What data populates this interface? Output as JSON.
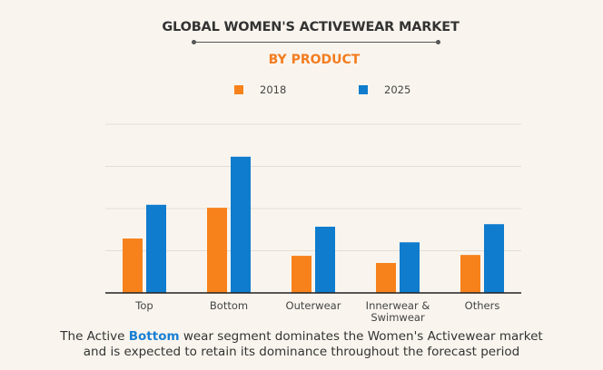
{
  "chart_data": {
    "type": "bar",
    "title": "GLOBAL WOMEN'S ACTIVEWEAR MARKET",
    "subtitle": "BY PRODUCT",
    "categories": [
      "Top",
      "Bottom",
      "Outerwear",
      "Innerwear & Swimwear",
      "Others"
    ],
    "category_lines": [
      [
        "Top"
      ],
      [
        "Bottom"
      ],
      [
        "Outerwear"
      ],
      [
        "Innerwear &",
        "Swimwear"
      ],
      [
        "Others"
      ]
    ],
    "series": [
      {
        "name": "2018",
        "color": "#f7821b",
        "values": [
          1.29,
          2.02,
          0.88,
          0.71,
          0.9
        ]
      },
      {
        "name": "2025",
        "color": "#0f7ccd",
        "values": [
          2.09,
          3.23,
          1.57,
          1.2,
          1.63
        ]
      }
    ],
    "xlabel": "",
    "ylabel": "",
    "ylim": [
      0,
      4
    ],
    "y_tick_labels_shown": false,
    "grid": true,
    "legend_placement": "top-center"
  },
  "caption": {
    "before": "The Active ",
    "highlight": "Bottom",
    "after": " wear segment dominates the Women's Activewear market",
    "line2": "and is expected to retain its dominance throughout the forecast period",
    "highlight_color": "#1a7fd4"
  }
}
